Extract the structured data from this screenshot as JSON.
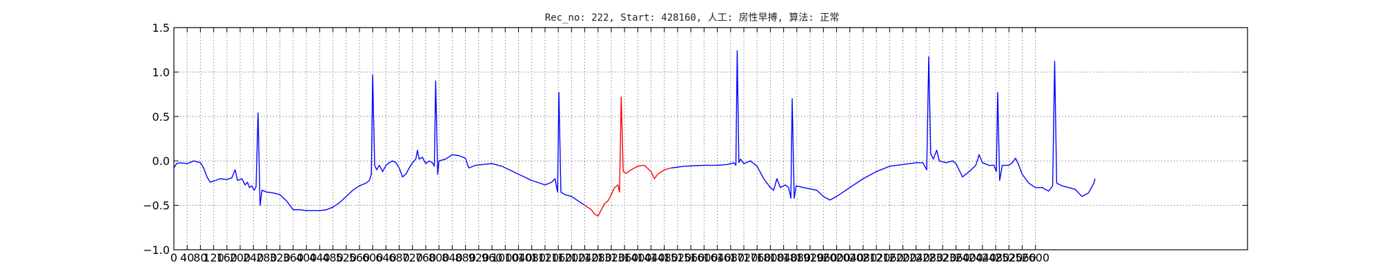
{
  "chart_data": {
    "type": "line",
    "title": "Rec_no: 222, Start: 428160, 人工: 房性早搏, 算法: 正常",
    "xlabel": "",
    "ylabel": "",
    "xlim": [
      0,
      3240
    ],
    "ylim": [
      -1.0,
      1.5
    ],
    "grid": true,
    "legend": "none",
    "y_ticks": [
      -1.0,
      -0.5,
      0.0,
      0.5,
      1.0,
      1.5
    ],
    "y_tick_labels": [
      "−1.0",
      "−0.5",
      "0.0",
      "0.5",
      "1.0",
      "1.5"
    ],
    "x_ticks": [
      0,
      40,
      80,
      120,
      160,
      200,
      240,
      280,
      320,
      360,
      400,
      440,
      480,
      520,
      560,
      600,
      640,
      680,
      720,
      760,
      800,
      840,
      880,
      920,
      960,
      1000,
      1040,
      1080,
      1120,
      1160,
      1200,
      1240,
      1280,
      1320,
      1360,
      1400,
      1440,
      1480,
      1520,
      1560,
      1600,
      1640,
      1680,
      1720,
      1760,
      1800,
      1840,
      1880,
      1920,
      1960,
      2000,
      2040,
      2080,
      2120,
      2160,
      2200,
      2240,
      2280,
      2320,
      2360,
      2400,
      2440,
      2480,
      2520,
      2560,
      2600
    ],
    "x_tick_labels": [
      "0",
      "40",
      "80",
      "120",
      "160",
      "200",
      "240",
      "280",
      "320",
      "360",
      "400",
      "440",
      "480",
      "520",
      "560",
      "600",
      "640",
      "680",
      "720",
      "760",
      "800",
      "840",
      "880",
      "920",
      "960",
      "1000",
      "1040",
      "1080",
      "1120",
      "1160",
      "1200",
      "1240",
      "1280",
      "1320",
      "1360",
      "1400",
      "1440",
      "1480",
      "1520",
      "1560",
      "1600",
      "1640",
      "1680",
      "1720",
      "1760",
      "1800",
      "1840",
      "1880",
      "1920",
      "1960",
      "2000",
      "2040",
      "2080",
      "2120",
      "2160",
      "2200",
      "2240",
      "2280",
      "2320",
      "2360",
      "2400",
      "2440",
      "2480",
      "2520",
      "2560",
      "2600"
    ],
    "series": [
      {
        "color": "#0000ff",
        "points": [
          [
            0,
            -0.08
          ],
          [
            8,
            -0.03
          ],
          [
            20,
            -0.02
          ],
          [
            40,
            -0.03
          ],
          [
            60,
            0.0
          ],
          [
            80,
            -0.02
          ],
          [
            90,
            -0.08
          ],
          [
            100,
            -0.18
          ],
          [
            110,
            -0.24
          ],
          [
            140,
            -0.2
          ],
          [
            160,
            -0.21
          ],
          [
            175,
            -0.19
          ],
          [
            185,
            -0.1
          ],
          [
            192,
            -0.22
          ],
          [
            205,
            -0.2
          ],
          [
            215,
            -0.27
          ],
          [
            222,
            -0.24
          ],
          [
            228,
            -0.3
          ],
          [
            235,
            -0.28
          ],
          [
            242,
            -0.33
          ],
          [
            248,
            -0.29
          ],
          [
            254,
            0.54
          ],
          [
            260,
            -0.5
          ],
          [
            266,
            -0.33
          ],
          [
            280,
            -0.35
          ],
          [
            300,
            -0.36
          ],
          [
            320,
            -0.38
          ],
          [
            340,
            -0.45
          ],
          [
            360,
            -0.55
          ],
          [
            380,
            -0.55
          ],
          [
            400,
            -0.56
          ],
          [
            440,
            -0.56
          ],
          [
            460,
            -0.55
          ],
          [
            480,
            -0.52
          ],
          [
            500,
            -0.47
          ],
          [
            520,
            -0.4
          ],
          [
            540,
            -0.33
          ],
          [
            560,
            -0.28
          ],
          [
            580,
            -0.25
          ],
          [
            590,
            -0.22
          ],
          [
            596,
            -0.15
          ],
          [
            600,
            0.97
          ],
          [
            606,
            -0.05
          ],
          [
            612,
            -0.1
          ],
          [
            620,
            -0.05
          ],
          [
            630,
            -0.12
          ],
          [
            640,
            -0.05
          ],
          [
            650,
            -0.02
          ],
          [
            660,
            0.0
          ],
          [
            670,
            -0.02
          ],
          [
            680,
            -0.08
          ],
          [
            690,
            -0.18
          ],
          [
            700,
            -0.15
          ],
          [
            710,
            -0.08
          ],
          [
            720,
            -0.02
          ],
          [
            730,
            0.02
          ],
          [
            735,
            0.12
          ],
          [
            740,
            0.02
          ],
          [
            750,
            0.04
          ],
          [
            760,
            -0.03
          ],
          [
            770,
            0.0
          ],
          [
            780,
            -0.02
          ],
          [
            786,
            -0.06
          ],
          [
            790,
            0.9
          ],
          [
            796,
            -0.15
          ],
          [
            800,
            0.0
          ],
          [
            820,
            0.02
          ],
          [
            840,
            0.07
          ],
          [
            860,
            0.06
          ],
          [
            880,
            0.03
          ],
          [
            890,
            -0.08
          ],
          [
            910,
            -0.05
          ],
          [
            960,
            -0.03
          ],
          [
            990,
            -0.06
          ],
          [
            1040,
            -0.15
          ],
          [
            1080,
            -0.22
          ],
          [
            1120,
            -0.27
          ],
          [
            1140,
            -0.24
          ],
          [
            1150,
            -0.2
          ],
          [
            1158,
            -0.35
          ],
          [
            1162,
            0.77
          ],
          [
            1168,
            -0.35
          ],
          [
            1180,
            -0.38
          ],
          [
            1200,
            -0.4
          ],
          [
            1220,
            -0.45
          ],
          [
            1240,
            -0.5
          ]
        ]
      },
      {
        "color": "#ff0000",
        "points": [
          [
            1240,
            -0.5
          ],
          [
            1260,
            -0.55
          ],
          [
            1270,
            -0.6
          ],
          [
            1280,
            -0.62
          ],
          [
            1290,
            -0.55
          ],
          [
            1300,
            -0.48
          ],
          [
            1310,
            -0.45
          ],
          [
            1320,
            -0.38
          ],
          [
            1330,
            -0.3
          ],
          [
            1340,
            -0.27
          ],
          [
            1345,
            -0.35
          ],
          [
            1350,
            0.72
          ],
          [
            1356,
            -0.12
          ],
          [
            1365,
            -0.14
          ],
          [
            1380,
            -0.1
          ],
          [
            1400,
            -0.06
          ],
          [
            1420,
            -0.05
          ],
          [
            1440,
            -0.12
          ],
          [
            1450,
            -0.2
          ],
          [
            1460,
            -0.15
          ],
          [
            1480,
            -0.1
          ],
          [
            1500,
            -0.08
          ]
        ]
      },
      {
        "color": "#0000ff",
        "points": [
          [
            1500,
            -0.08
          ],
          [
            1540,
            -0.06
          ],
          [
            1600,
            -0.05
          ],
          [
            1640,
            -0.05
          ],
          [
            1670,
            -0.04
          ],
          [
            1690,
            -0.02
          ],
          [
            1696,
            -0.05
          ],
          [
            1700,
            1.24
          ],
          [
            1705,
            -0.02
          ],
          [
            1710,
            0.02
          ],
          [
            1720,
            -0.03
          ],
          [
            1740,
            0.0
          ],
          [
            1760,
            -0.06
          ],
          [
            1780,
            -0.2
          ],
          [
            1800,
            -0.3
          ],
          [
            1810,
            -0.33
          ],
          [
            1820,
            -0.2
          ],
          [
            1830,
            -0.3
          ],
          [
            1845,
            -0.27
          ],
          [
            1855,
            -0.3
          ],
          [
            1862,
            -0.42
          ],
          [
            1866,
            0.7
          ],
          [
            1872,
            -0.42
          ],
          [
            1878,
            -0.28
          ],
          [
            1900,
            -0.3
          ],
          [
            1940,
            -0.33
          ],
          [
            1960,
            -0.4
          ],
          [
            1980,
            -0.44
          ],
          [
            2000,
            -0.4
          ],
          [
            2040,
            -0.3
          ],
          [
            2080,
            -0.2
          ],
          [
            2120,
            -0.12
          ],
          [
            2160,
            -0.06
          ],
          [
            2200,
            -0.04
          ],
          [
            2240,
            -0.02
          ],
          [
            2260,
            -0.02
          ],
          [
            2272,
            -0.1
          ],
          [
            2278,
            1.17
          ],
          [
            2284,
            0.08
          ],
          [
            2292,
            0.02
          ],
          [
            2302,
            0.12
          ],
          [
            2310,
            0.0
          ],
          [
            2330,
            -0.02
          ],
          [
            2350,
            0.0
          ],
          [
            2360,
            -0.03
          ],
          [
            2380,
            -0.18
          ],
          [
            2400,
            -0.12
          ],
          [
            2420,
            -0.05
          ],
          [
            2430,
            0.07
          ],
          [
            2440,
            -0.02
          ],
          [
            2460,
            -0.05
          ],
          [
            2475,
            -0.05
          ],
          [
            2482,
            -0.12
          ],
          [
            2486,
            0.77
          ],
          [
            2492,
            -0.22
          ],
          [
            2500,
            -0.05
          ],
          [
            2520,
            -0.05
          ],
          [
            2530,
            -0.02
          ],
          [
            2540,
            0.03
          ],
          [
            2550,
            -0.05
          ],
          [
            2560,
            -0.15
          ],
          [
            2580,
            -0.25
          ],
          [
            2600,
            -0.3
          ],
          [
            2620,
            -0.3
          ],
          [
            2640,
            -0.34
          ],
          [
            2652,
            -0.28
          ],
          [
            2658,
            1.12
          ],
          [
            2664,
            -0.25
          ],
          [
            2680,
            -0.28
          ],
          [
            2700,
            -0.3
          ],
          [
            2720,
            -0.32
          ],
          [
            2740,
            -0.4
          ],
          [
            2760,
            -0.36
          ],
          [
            2775,
            -0.26
          ],
          [
            2780,
            -0.2
          ]
        ]
      }
    ]
  }
}
